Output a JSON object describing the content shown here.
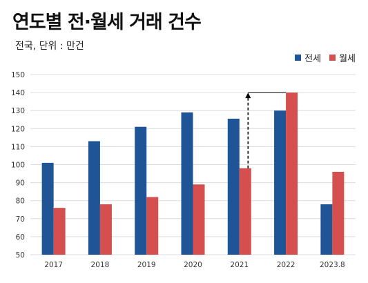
{
  "title": "연도별 전·월세 거래 건수",
  "subtitle": "전국, 단위 : 만건",
  "colors": {
    "jeonse": "#1f5597",
    "wolse": "#d64f4f",
    "grid": "#dcdcdc",
    "arrow": "#000000"
  },
  "chart_data": {
    "type": "bar",
    "categories": [
      "2017",
      "2018",
      "2019",
      "2020",
      "2021",
      "2022",
      "2023.8"
    ],
    "series": [
      {
        "name": "전세",
        "values": [
          101,
          113,
          121,
          129,
          125.5,
          130,
          78
        ]
      },
      {
        "name": "월세",
        "values": [
          76,
          78,
          82,
          89,
          98,
          140,
          96
        ]
      }
    ],
    "ylim": [
      50,
      150
    ],
    "yticks": [
      50,
      60,
      70,
      80,
      90,
      100,
      110,
      120,
      130,
      140,
      150
    ],
    "grid": true,
    "legend": "top-right",
    "annotation": {
      "type": "dashed-arrow",
      "category": "2021",
      "from": 98,
      "to": 140
    }
  }
}
